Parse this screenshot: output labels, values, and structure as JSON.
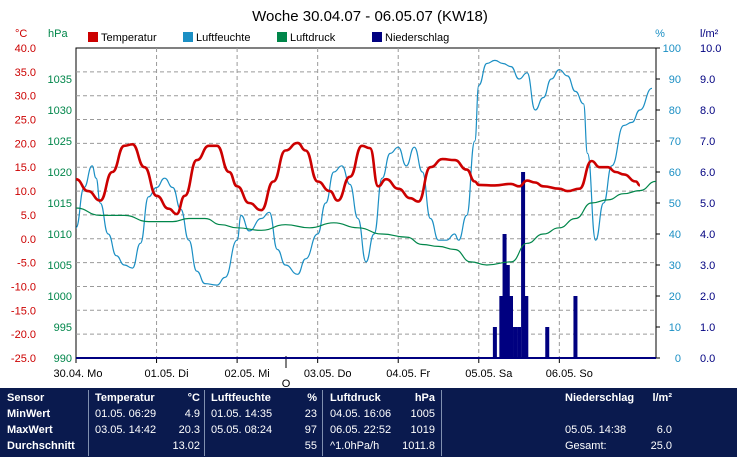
{
  "title": "Woche 30.04.07 - 06.05.07 (KW18)",
  "unit_labels": {
    "temp": "°C",
    "press": "hPa",
    "hum": "%",
    "rain": "l/m²"
  },
  "legend": [
    {
      "name": "Temperatur",
      "color": "#cc0000"
    },
    {
      "name": "Luftfeuchte",
      "color": "#1b8fc4"
    },
    {
      "name": "Luftdruck",
      "color": "#00864a"
    },
    {
      "name": "Niederschlag",
      "color": "#000080"
    }
  ],
  "chart_data": {
    "type": "line",
    "title": "Woche 30.04.07 - 06.05.07 (KW18)",
    "x_ticks": [
      "30.04. Mo",
      "01.05. Di",
      "02.05. Mi",
      "03.05. Do",
      "04.05. Fr",
      "05.05. Sa",
      "06.05. So"
    ],
    "x_unit": "days since 30.04.07 00:00",
    "x_range": [
      0,
      7.2
    ],
    "axes": {
      "temp": {
        "label": "°C",
        "range": [
          -25,
          40
        ],
        "ticks": [
          "40.0",
          "35.0",
          "30.0",
          "25.0",
          "20.0",
          "15.0",
          "10.0",
          "5.0",
          "0.0",
          "-5.0",
          "-10.0",
          "-15.0",
          "-20.0",
          "-25.0"
        ]
      },
      "press": {
        "label": "hPa",
        "range": [
          990,
          1040
        ],
        "ticks": [
          "1035",
          "1030",
          "1025",
          "1020",
          "1015",
          "1010",
          "1005",
          "1000",
          "995",
          "990"
        ]
      },
      "hum": {
        "label": "%",
        "range": [
          0,
          100
        ],
        "ticks": [
          "100",
          "90",
          "80",
          "70",
          "60",
          "50",
          "40",
          "30",
          "20",
          "10",
          "0"
        ]
      },
      "rain": {
        "label": "l/m²",
        "range": [
          0,
          10
        ],
        "ticks": [
          "10.0",
          "9.0",
          "8.0",
          "7.0",
          "6.0",
          "5.0",
          "4.0",
          "3.0",
          "2.0",
          "1.0",
          "0.0"
        ]
      }
    },
    "grid": true,
    "series": [
      {
        "name": "Temperatur",
        "axis": "temp",
        "color": "#cc0000",
        "points": [
          [
            0,
            12.5
          ],
          [
            0.15,
            10
          ],
          [
            0.3,
            8
          ],
          [
            0.45,
            14
          ],
          [
            0.6,
            19.5
          ],
          [
            0.7,
            19.8
          ],
          [
            0.85,
            15
          ],
          [
            1.0,
            9
          ],
          [
            1.15,
            6.3
          ],
          [
            1.25,
            5.2
          ],
          [
            1.35,
            9
          ],
          [
            1.5,
            16.5
          ],
          [
            1.65,
            19.5
          ],
          [
            1.75,
            19.5
          ],
          [
            1.9,
            14
          ],
          [
            2.0,
            11
          ],
          [
            2.15,
            7.5
          ],
          [
            2.3,
            6
          ],
          [
            2.45,
            12
          ],
          [
            2.6,
            18.5
          ],
          [
            2.75,
            20.1
          ],
          [
            2.85,
            18.5
          ],
          [
            3.0,
            12
          ],
          [
            3.15,
            10
          ],
          [
            3.25,
            8
          ],
          [
            3.4,
            13
          ],
          [
            3.55,
            19.5
          ],
          [
            3.65,
            19
          ],
          [
            3.75,
            11
          ],
          [
            3.85,
            12.5
          ],
          [
            4.0,
            10.5
          ],
          [
            4.15,
            8.5
          ],
          [
            4.25,
            7.8
          ],
          [
            4.4,
            15
          ],
          [
            4.55,
            16.7
          ],
          [
            4.7,
            16.5
          ],
          [
            4.85,
            14.5
          ],
          [
            4.95,
            12
          ],
          [
            5.0,
            11.3
          ],
          [
            5.2,
            11.2
          ],
          [
            5.4,
            11.5
          ],
          [
            5.5,
            11
          ],
          [
            5.6,
            12.2
          ],
          [
            5.7,
            11.8
          ],
          [
            5.8,
            11
          ],
          [
            6.0,
            10.5
          ],
          [
            6.1,
            10
          ],
          [
            6.25,
            10.5
          ],
          [
            6.4,
            16.3
          ],
          [
            6.5,
            15
          ],
          [
            6.6,
            15
          ],
          [
            6.7,
            14
          ],
          [
            6.8,
            13.5
          ],
          [
            6.95,
            12
          ],
          [
            7.0,
            11.2
          ]
        ]
      },
      {
        "name": "Luftfeuchte",
        "axis": "hum",
        "color": "#1b8fc4",
        "points": [
          [
            0,
            42
          ],
          [
            0.1,
            55
          ],
          [
            0.2,
            62
          ],
          [
            0.25,
            58
          ],
          [
            0.3,
            50
          ],
          [
            0.4,
            40
          ],
          [
            0.5,
            33
          ],
          [
            0.6,
            30
          ],
          [
            0.7,
            29
          ],
          [
            0.8,
            37
          ],
          [
            0.9,
            52
          ],
          [
            1.0,
            55
          ],
          [
            1.1,
            58
          ],
          [
            1.2,
            55
          ],
          [
            1.3,
            48
          ],
          [
            1.4,
            38
          ],
          [
            1.5,
            28
          ],
          [
            1.6,
            24
          ],
          [
            1.75,
            23.5
          ],
          [
            1.85,
            26
          ],
          [
            2.0,
            38
          ],
          [
            2.05,
            46
          ],
          [
            2.15,
            41
          ],
          [
            2.3,
            45
          ],
          [
            2.4,
            47
          ],
          [
            2.5,
            35
          ],
          [
            2.6,
            30
          ],
          [
            2.75,
            27
          ],
          [
            2.85,
            32
          ],
          [
            3.0,
            40
          ],
          [
            3.1,
            50
          ],
          [
            3.2,
            60
          ],
          [
            3.3,
            62
          ],
          [
            3.4,
            56
          ],
          [
            3.5,
            45
          ],
          [
            3.6,
            31
          ],
          [
            3.7,
            40
          ],
          [
            3.8,
            58
          ],
          [
            3.9,
            66
          ],
          [
            4.0,
            68
          ],
          [
            4.1,
            62
          ],
          [
            4.2,
            68
          ],
          [
            4.3,
            60
          ],
          [
            4.4,
            45
          ],
          [
            4.5,
            38
          ],
          [
            4.6,
            38
          ],
          [
            4.7,
            40
          ],
          [
            4.75,
            38
          ],
          [
            4.85,
            46
          ],
          [
            4.95,
            70
          ],
          [
            5.0,
            88
          ],
          [
            5.1,
            95
          ],
          [
            5.2,
            96
          ],
          [
            5.3,
            95
          ],
          [
            5.4,
            94
          ],
          [
            5.5,
            90
          ],
          [
            5.6,
            92
          ],
          [
            5.7,
            80
          ],
          [
            5.8,
            84
          ],
          [
            5.9,
            90
          ],
          [
            6.0,
            93
          ],
          [
            6.1,
            91
          ],
          [
            6.2,
            86
          ],
          [
            6.3,
            82
          ],
          [
            6.35,
            66
          ],
          [
            6.45,
            38
          ],
          [
            6.55,
            50
          ],
          [
            6.65,
            62
          ],
          [
            6.8,
            75
          ],
          [
            6.9,
            76
          ],
          [
            7.0,
            80
          ],
          [
            7.15,
            87
          ]
        ]
      },
      {
        "name": "Luftdruck",
        "axis": "press",
        "color": "#00864a",
        "points": [
          [
            0,
            1014.2
          ],
          [
            0.3,
            1013
          ],
          [
            0.6,
            1013
          ],
          [
            0.9,
            1012
          ],
          [
            1.2,
            1012
          ],
          [
            1.4,
            1012.5
          ],
          [
            1.6,
            1012.5
          ],
          [
            1.8,
            1011.5
          ],
          [
            2.0,
            1011
          ],
          [
            2.3,
            1010.6
          ],
          [
            2.6,
            1011.5
          ],
          [
            2.9,
            1011
          ],
          [
            3.2,
            1011.8
          ],
          [
            3.5,
            1011
          ],
          [
            3.8,
            1010
          ],
          [
            4.1,
            1009.5
          ],
          [
            4.3,
            1008.3
          ],
          [
            4.5,
            1008
          ],
          [
            4.7,
            1007.5
          ],
          [
            4.9,
            1005.5
          ],
          [
            5.1,
            1005
          ],
          [
            5.4,
            1005.5
          ],
          [
            5.6,
            1008.5
          ],
          [
            5.8,
            1010
          ],
          [
            6.0,
            1011
          ],
          [
            6.2,
            1012.5
          ],
          [
            6.4,
            1015
          ],
          [
            6.6,
            1015.5
          ],
          [
            6.8,
            1016.5
          ],
          [
            7.0,
            1017
          ],
          [
            7.2,
            1018.5
          ]
        ]
      }
    ],
    "bars": {
      "name": "Niederschlag",
      "axis": "rain",
      "color": "#000080",
      "points": [
        [
          5.2,
          1.0
        ],
        [
          5.28,
          2.0
        ],
        [
          5.32,
          4.0
        ],
        [
          5.36,
          3.0
        ],
        [
          5.4,
          2.0
        ],
        [
          5.45,
          1.0
        ],
        [
          5.5,
          1.0
        ],
        [
          5.55,
          6.0
        ],
        [
          5.59,
          2.0
        ],
        [
          5.85,
          1.0
        ],
        [
          6.2,
          2.0
        ]
      ]
    },
    "extra_label": "O"
  },
  "stats": {
    "header": {
      "sensor": "Sensor",
      "temp": "Temperatur",
      "temp_unit": "°C",
      "hum": "Luftfeuchte",
      "hum_unit": "%",
      "press": "Luftdruck",
      "press_unit": "hPa",
      "rain": "Niederschlag",
      "rain_unit": "l/m²"
    },
    "rows": [
      {
        "label": "MinWert",
        "temp_time": "01.05.  06:29",
        "temp_val": "4.9",
        "hum_time": "01.05.  14:35",
        "hum_val": "23",
        "press_time": "04.05.  16:06",
        "press_val": "1005",
        "rain_time": "",
        "rain_val": ""
      },
      {
        "label": "MaxWert",
        "temp_time": "03.05.  14:42",
        "temp_val": "20.3",
        "hum_time": "05.05.  08:24",
        "hum_val": "97",
        "press_time": "06.05.  22:52",
        "press_val": "1019",
        "rain_time": "05.05.  14:38",
        "rain_val": "6.0"
      },
      {
        "label": "Durchschnitt",
        "temp_time": "",
        "temp_val": "13.02",
        "hum_time": "",
        "hum_val": "55",
        "press_time": "^1.0hPa/h",
        "press_val": "1011.8",
        "rain_time": "Gesamt:",
        "rain_val": "25.0"
      }
    ]
  }
}
